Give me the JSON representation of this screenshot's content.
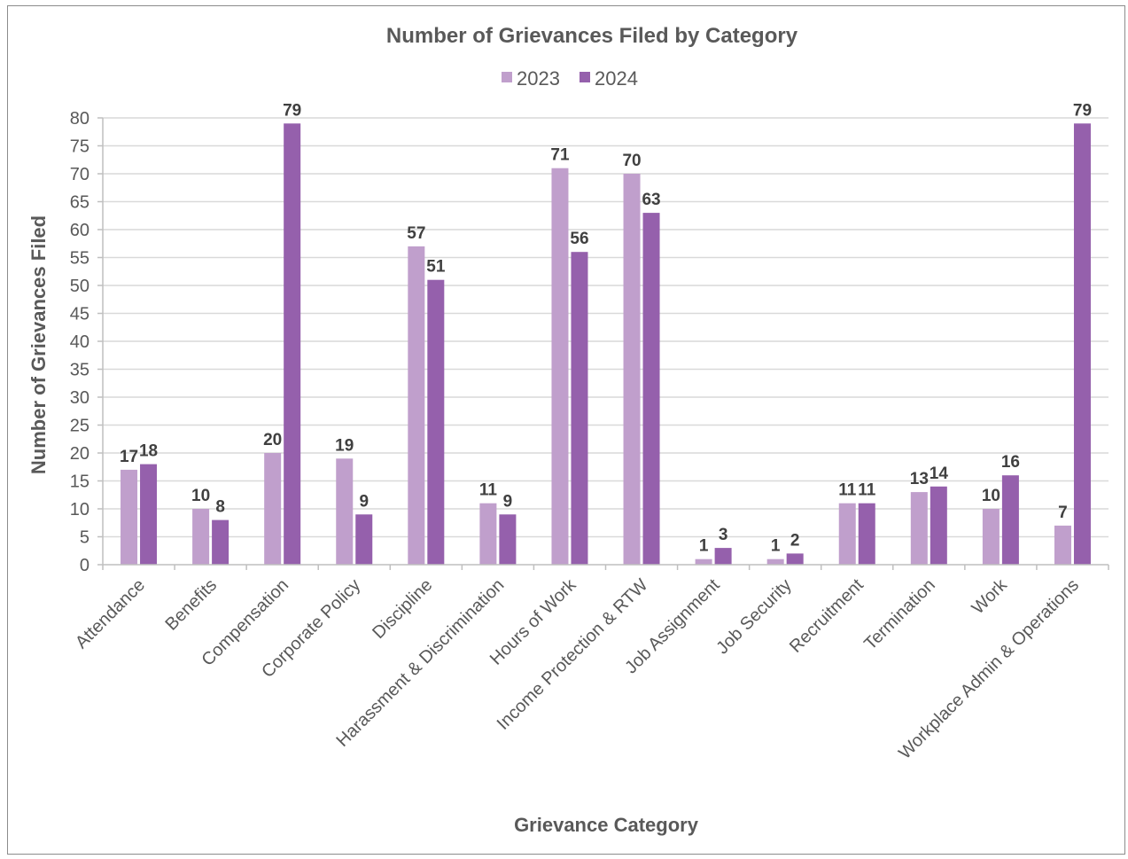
{
  "chart_data": {
    "type": "bar",
    "title": "Number of Grievances Filed by Category",
    "xlabel": "Grievance Category",
    "ylabel": "Number of Grievances Filed",
    "ylim": [
      0,
      80
    ],
    "yticks": [
      0,
      5,
      10,
      15,
      20,
      25,
      30,
      35,
      40,
      45,
      50,
      55,
      60,
      65,
      70,
      75,
      80
    ],
    "grid": true,
    "legend_position": "top",
    "categories": [
      "Attendance",
      "Benefits",
      "Compensation",
      "Corporate Policy",
      "Discipline",
      "Harassment & Discrimination",
      "Hours of Work",
      "Income Protection & RTW",
      "Job Assignment",
      "Job Security",
      "Recruitment",
      "Termination",
      "Work",
      "Workplace Admin & Operations"
    ],
    "series": [
      {
        "name": "2023",
        "color": "#c09fcc",
        "values": [
          17,
          10,
          20,
          19,
          57,
          11,
          71,
          70,
          1,
          1,
          11,
          13,
          10,
          7
        ]
      },
      {
        "name": "2024",
        "color": "#9560ac",
        "values": [
          18,
          8,
          79,
          9,
          51,
          9,
          56,
          63,
          3,
          2,
          11,
          14,
          16,
          79
        ]
      }
    ]
  }
}
